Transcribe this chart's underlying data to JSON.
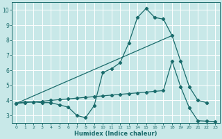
{
  "xlabel": "Humidex (Indice chaleur)",
  "bg_color": "#c8e8e8",
  "line_color": "#1a6b6b",
  "grid_color": "#ffffff",
  "xlim": [
    -0.5,
    23.5
  ],
  "ylim": [
    2.5,
    10.5
  ],
  "xticks": [
    0,
    1,
    2,
    3,
    4,
    5,
    6,
    7,
    8,
    9,
    10,
    11,
    12,
    13,
    14,
    15,
    16,
    17,
    18,
    19,
    20,
    21,
    22,
    23
  ],
  "yticks": [
    3,
    4,
    5,
    6,
    7,
    8,
    9,
    10
  ],
  "curve1_x": [
    0,
    1,
    2,
    3,
    4,
    5,
    6,
    7,
    8,
    9,
    10,
    11,
    12,
    13,
    14,
    15,
    16,
    17,
    18,
    19,
    20,
    21,
    22
  ],
  "curve1_y": [
    3.8,
    3.9,
    3.9,
    3.85,
    3.85,
    3.7,
    3.55,
    3.0,
    2.85,
    3.65,
    5.85,
    6.1,
    6.5,
    7.8,
    9.5,
    10.1,
    9.5,
    9.4,
    8.3,
    6.6,
    4.9,
    4.0,
    3.85
  ],
  "curve2_x": [
    0,
    18
  ],
  "curve2_y": [
    3.8,
    8.3
  ],
  "curve3_x": [
    0,
    1,
    2,
    3,
    4,
    5,
    6,
    7,
    8,
    9,
    10,
    11,
    12,
    13,
    14,
    15,
    16,
    17,
    18,
    19,
    20,
    21,
    22,
    23
  ],
  "curve3_y": [
    3.8,
    3.85,
    3.9,
    3.95,
    4.0,
    4.05,
    4.1,
    4.15,
    4.2,
    4.25,
    4.3,
    4.35,
    4.4,
    4.45,
    4.5,
    4.55,
    4.6,
    4.65,
    6.6,
    4.9,
    3.5,
    2.65,
    2.62,
    2.6
  ]
}
